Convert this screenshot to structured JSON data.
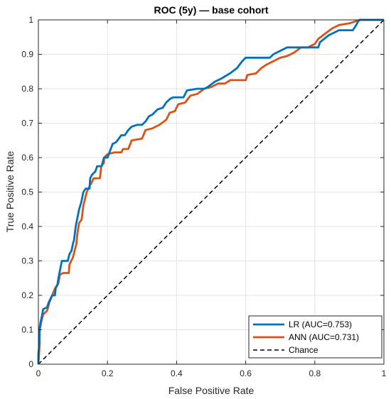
{
  "chart_data": {
    "type": "line",
    "title": "ROC (5y) — base cohort",
    "xlabel": "False Positive Rate",
    "ylabel": "True Positive Rate",
    "xlim": [
      0,
      1
    ],
    "ylim": [
      0,
      1
    ],
    "xticks": [
      "0",
      "0.2",
      "0.4",
      "0.6",
      "0.8",
      "1"
    ],
    "yticks": [
      "0",
      "0.1",
      "0.2",
      "0.3",
      "0.4",
      "0.5",
      "0.6",
      "0.7",
      "0.8",
      "0.9",
      "1"
    ],
    "grid": true,
    "legend_position": "bottom-right",
    "series": [
      {
        "name": "LR (AUC=0.753)",
        "color": "#0072bd",
        "points": [
          [
            0,
            0
          ],
          [
            0,
            0.03
          ],
          [
            0.003,
            0.06
          ],
          [
            0.003,
            0.1
          ],
          [
            0.006,
            0.12
          ],
          [
            0.01,
            0.14
          ],
          [
            0.014,
            0.16
          ],
          [
            0.025,
            0.165
          ],
          [
            0.03,
            0.18
          ],
          [
            0.04,
            0.2
          ],
          [
            0.048,
            0.2
          ],
          [
            0.05,
            0.22
          ],
          [
            0.055,
            0.23
          ],
          [
            0.058,
            0.25
          ],
          [
            0.062,
            0.27
          ],
          [
            0.068,
            0.3
          ],
          [
            0.085,
            0.3
          ],
          [
            0.09,
            0.32
          ],
          [
            0.096,
            0.33
          ],
          [
            0.1,
            0.35
          ],
          [
            0.103,
            0.36
          ],
          [
            0.108,
            0.4
          ],
          [
            0.112,
            0.42
          ],
          [
            0.118,
            0.45
          ],
          [
            0.124,
            0.47
          ],
          [
            0.13,
            0.5
          ],
          [
            0.137,
            0.51
          ],
          [
            0.148,
            0.51
          ],
          [
            0.15,
            0.54
          ],
          [
            0.155,
            0.55
          ],
          [
            0.165,
            0.56
          ],
          [
            0.17,
            0.575
          ],
          [
            0.183,
            0.575
          ],
          [
            0.19,
            0.6
          ],
          [
            0.2,
            0.6
          ],
          [
            0.215,
            0.64
          ],
          [
            0.225,
            0.645
          ],
          [
            0.24,
            0.665
          ],
          [
            0.25,
            0.665
          ],
          [
            0.26,
            0.68
          ],
          [
            0.27,
            0.69
          ],
          [
            0.285,
            0.695
          ],
          [
            0.3,
            0.695
          ],
          [
            0.31,
            0.705
          ],
          [
            0.32,
            0.72
          ],
          [
            0.33,
            0.725
          ],
          [
            0.335,
            0.73
          ],
          [
            0.345,
            0.74
          ],
          [
            0.36,
            0.745
          ],
          [
            0.37,
            0.76
          ],
          [
            0.38,
            0.77
          ],
          [
            0.39,
            0.775
          ],
          [
            0.42,
            0.775
          ],
          [
            0.43,
            0.795
          ],
          [
            0.46,
            0.8
          ],
          [
            0.48,
            0.8
          ],
          [
            0.49,
            0.805
          ],
          [
            0.51,
            0.82
          ],
          [
            0.53,
            0.83
          ],
          [
            0.555,
            0.845
          ],
          [
            0.575,
            0.86
          ],
          [
            0.59,
            0.88
          ],
          [
            0.6,
            0.89
          ],
          [
            0.67,
            0.89
          ],
          [
            0.68,
            0.9
          ],
          [
            0.7,
            0.91
          ],
          [
            0.72,
            0.92
          ],
          [
            0.81,
            0.92
          ],
          [
            0.815,
            0.935
          ],
          [
            0.84,
            0.955
          ],
          [
            0.87,
            0.97
          ],
          [
            0.91,
            0.97
          ],
          [
            0.92,
            0.985
          ],
          [
            0.925,
            0.995
          ],
          [
            0.93,
            1.0
          ],
          [
            1.0,
            1.0
          ]
        ]
      },
      {
        "name": "ANN (AUC=0.731)",
        "color": "#d95319",
        "points": [
          [
            0,
            0
          ],
          [
            0.003,
            0.05
          ],
          [
            0.004,
            0.1
          ],
          [
            0.01,
            0.13
          ],
          [
            0.014,
            0.145
          ],
          [
            0.025,
            0.155
          ],
          [
            0.032,
            0.18
          ],
          [
            0.04,
            0.2
          ],
          [
            0.048,
            0.22
          ],
          [
            0.058,
            0.235
          ],
          [
            0.062,
            0.26
          ],
          [
            0.072,
            0.265
          ],
          [
            0.088,
            0.265
          ],
          [
            0.09,
            0.29
          ],
          [
            0.1,
            0.31
          ],
          [
            0.105,
            0.33
          ],
          [
            0.11,
            0.35
          ],
          [
            0.113,
            0.38
          ],
          [
            0.118,
            0.41
          ],
          [
            0.125,
            0.42
          ],
          [
            0.13,
            0.46
          ],
          [
            0.135,
            0.48
          ],
          [
            0.14,
            0.5
          ],
          [
            0.15,
            0.52
          ],
          [
            0.16,
            0.54
          ],
          [
            0.178,
            0.54
          ],
          [
            0.182,
            0.575
          ],
          [
            0.19,
            0.585
          ],
          [
            0.19,
            0.6
          ],
          [
            0.2,
            0.61
          ],
          [
            0.22,
            0.615
          ],
          [
            0.24,
            0.615
          ],
          [
            0.245,
            0.625
          ],
          [
            0.26,
            0.625
          ],
          [
            0.27,
            0.65
          ],
          [
            0.3,
            0.655
          ],
          [
            0.31,
            0.68
          ],
          [
            0.33,
            0.685
          ],
          [
            0.35,
            0.695
          ],
          [
            0.37,
            0.71
          ],
          [
            0.38,
            0.73
          ],
          [
            0.395,
            0.735
          ],
          [
            0.405,
            0.755
          ],
          [
            0.425,
            0.76
          ],
          [
            0.44,
            0.78
          ],
          [
            0.46,
            0.785
          ],
          [
            0.48,
            0.8
          ],
          [
            0.5,
            0.805
          ],
          [
            0.52,
            0.815
          ],
          [
            0.54,
            0.815
          ],
          [
            0.555,
            0.825
          ],
          [
            0.6,
            0.825
          ],
          [
            0.605,
            0.84
          ],
          [
            0.63,
            0.845
          ],
          [
            0.645,
            0.86
          ],
          [
            0.66,
            0.87
          ],
          [
            0.68,
            0.88
          ],
          [
            0.7,
            0.89
          ],
          [
            0.72,
            0.895
          ],
          [
            0.74,
            0.905
          ],
          [
            0.76,
            0.92
          ],
          [
            0.78,
            0.92
          ],
          [
            0.8,
            0.93
          ],
          [
            0.81,
            0.945
          ],
          [
            0.83,
            0.96
          ],
          [
            0.85,
            0.975
          ],
          [
            0.87,
            0.985
          ],
          [
            0.9,
            0.99
          ],
          [
            0.93,
            1.0
          ],
          [
            1.0,
            1.0
          ]
        ]
      },
      {
        "name": "Chance",
        "color": "#000000",
        "dashed": true,
        "points": [
          [
            0,
            0
          ],
          [
            1,
            1
          ]
        ]
      }
    ]
  }
}
